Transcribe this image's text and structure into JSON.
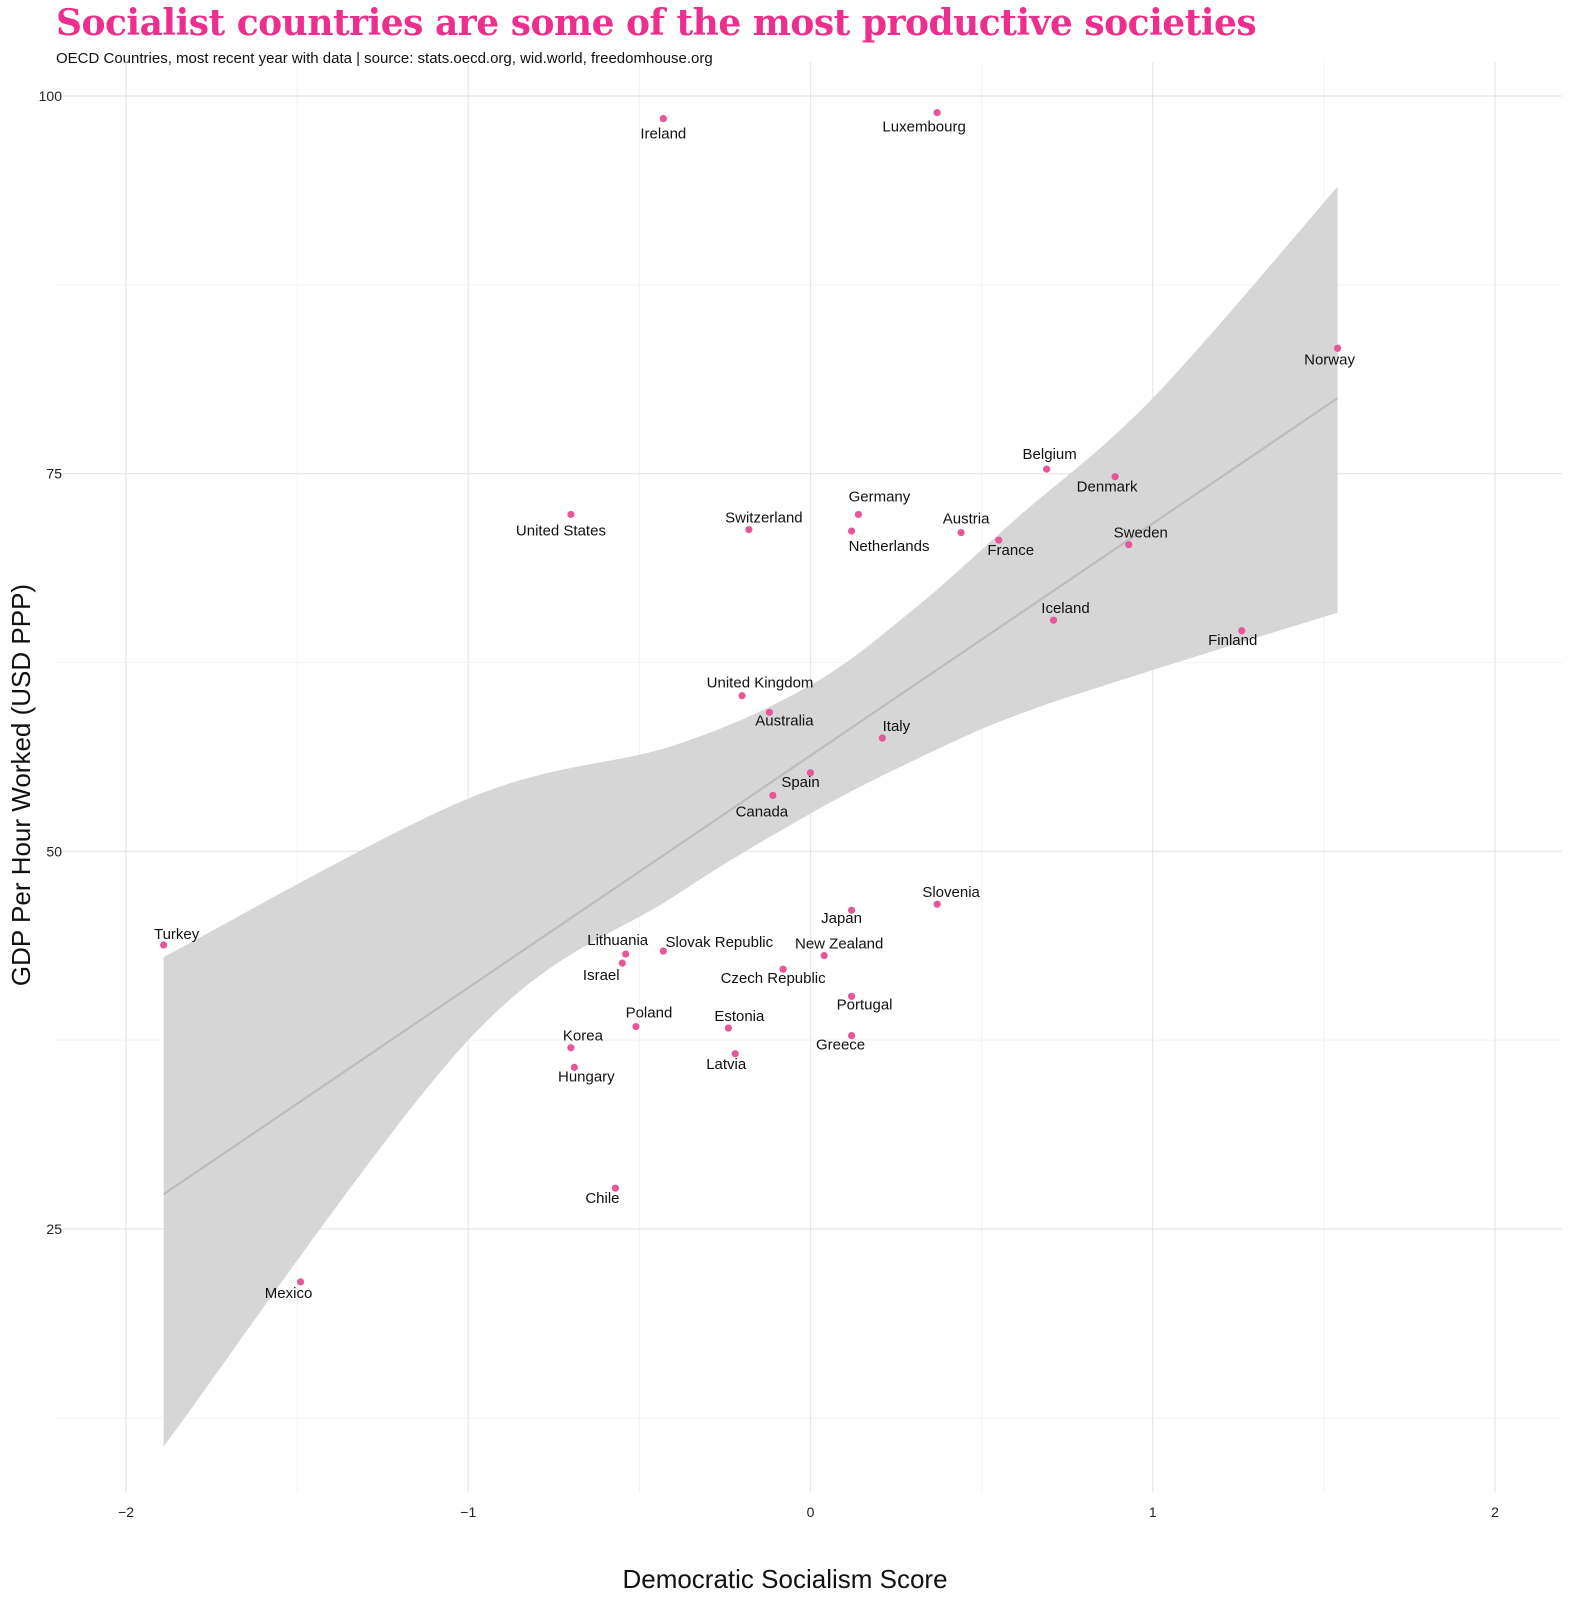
{
  "chart_data": {
    "type": "scatter",
    "title": "Socialist countries are some of the most productive societies",
    "subtitle": "OECD Countries, most recent year with data | source: stats.oecd.org, wid.world, freedomhouse.org",
    "xlabel": "Democratic Socialism Score",
    "ylabel": "GDP Per Hour Worked (USD PPP)",
    "xlim": [
      -2.1,
      2.2
    ],
    "ylim": [
      8,
      103
    ],
    "x_ticks": [
      -2,
      -1,
      0,
      1,
      2
    ],
    "x_tick_labels": [
      "−2",
      "−1",
      "0",
      "1",
      "2"
    ],
    "y_ticks": [
      25,
      50,
      75,
      100
    ],
    "y_tick_labels": [
      "25",
      "50",
      "75",
      "100"
    ],
    "grid": true,
    "point_color": "#e8569a",
    "trend": {
      "x_start": -1.89,
      "y_start": 27.3,
      "x_end": 1.54,
      "y_end": 80.0,
      "band_color": "#d6d6d6",
      "line_color": "#bdbdbd",
      "band_upper": [
        [
          -1.89,
          43.0
        ],
        [
          -1.0,
          53.5
        ],
        [
          -0.4,
          57.0
        ],
        [
          0.0,
          61.0
        ],
        [
          0.3,
          66.0
        ],
        [
          0.6,
          72.0
        ],
        [
          1.0,
          80.0
        ],
        [
          1.54,
          94.0
        ]
      ],
      "band_lower": [
        [
          -1.89,
          10.6
        ],
        [
          -1.0,
          37.5
        ],
        [
          -0.4,
          47.0
        ],
        [
          0.0,
          52.5
        ],
        [
          0.3,
          56.0
        ],
        [
          0.6,
          59.0
        ],
        [
          1.0,
          62.0
        ],
        [
          1.54,
          65.8
        ]
      ]
    },
    "points": [
      {
        "name": "Ireland",
        "x": -0.43,
        "y": 98.5
      },
      {
        "name": "Luxembourg",
        "x": 0.37,
        "y": 98.9
      },
      {
        "name": "Norway",
        "x": 1.54,
        "y": 83.3
      },
      {
        "name": "Belgium",
        "x": 0.69,
        "y": 75.3
      },
      {
        "name": "Denmark",
        "x": 0.89,
        "y": 74.8
      },
      {
        "name": "United States",
        "x": -0.7,
        "y": 72.3
      },
      {
        "name": "Switzerland",
        "x": -0.18,
        "y": 71.3
      },
      {
        "name": "Germany",
        "x": 0.14,
        "y": 72.3
      },
      {
        "name": "Netherlands",
        "x": 0.12,
        "y": 71.2
      },
      {
        "name": "Austria",
        "x": 0.44,
        "y": 71.1
      },
      {
        "name": "France",
        "x": 0.55,
        "y": 70.6
      },
      {
        "name": "Sweden",
        "x": 0.93,
        "y": 70.3
      },
      {
        "name": "Iceland",
        "x": 0.71,
        "y": 65.3
      },
      {
        "name": "Finland",
        "x": 1.26,
        "y": 64.6
      },
      {
        "name": "United Kingdom",
        "x": -0.2,
        "y": 60.3
      },
      {
        "name": "Australia",
        "x": -0.12,
        "y": 59.2
      },
      {
        "name": "Italy",
        "x": 0.21,
        "y": 57.5
      },
      {
        "name": "Spain",
        "x": 0.0,
        "y": 55.2
      },
      {
        "name": "Canada",
        "x": -0.11,
        "y": 53.7
      },
      {
        "name": "Slovenia",
        "x": 0.37,
        "y": 46.5
      },
      {
        "name": "Japan",
        "x": 0.12,
        "y": 46.1
      },
      {
        "name": "Turkey",
        "x": -1.89,
        "y": 43.8
      },
      {
        "name": "Lithuania",
        "x": -0.54,
        "y": 43.2
      },
      {
        "name": "Israel",
        "x": -0.55,
        "y": 42.6
      },
      {
        "name": "Slovak Republic",
        "x": -0.43,
        "y": 43.4
      },
      {
        "name": "New Zealand",
        "x": 0.04,
        "y": 43.1
      },
      {
        "name": "Czech Republic",
        "x": -0.08,
        "y": 42.2
      },
      {
        "name": "Portugal",
        "x": 0.12,
        "y": 40.4
      },
      {
        "name": "Poland",
        "x": -0.51,
        "y": 38.4
      },
      {
        "name": "Estonia",
        "x": -0.24,
        "y": 38.3
      },
      {
        "name": "Korea",
        "x": -0.7,
        "y": 37.0
      },
      {
        "name": "Greece",
        "x": 0.12,
        "y": 37.8
      },
      {
        "name": "Latvia",
        "x": -0.22,
        "y": 36.6
      },
      {
        "name": "Hungary",
        "x": -0.69,
        "y": 35.7
      },
      {
        "name": "Chile",
        "x": -0.57,
        "y": 27.7
      },
      {
        "name": "Mexico",
        "x": -1.49,
        "y": 21.5
      }
    ]
  }
}
